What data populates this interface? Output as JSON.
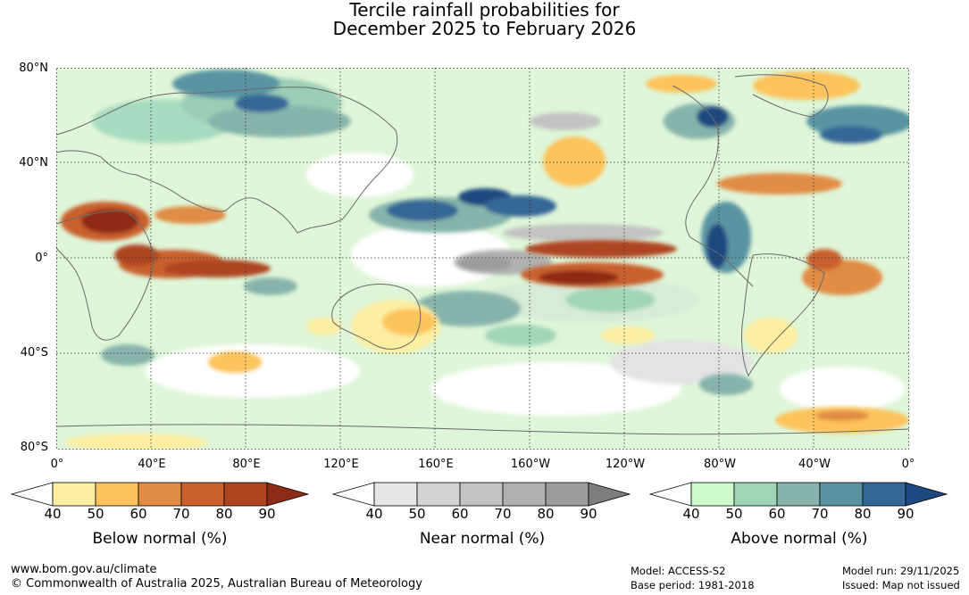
{
  "title": {
    "line1": "Tercile rainfall probabilities for",
    "line2": "December 2025 to February 2026"
  },
  "map": {
    "lat_labels": [
      "80°N",
      "40°N",
      "0°",
      "40°S",
      "80°S"
    ],
    "lon_labels": [
      "0°",
      "40°E",
      "80°E",
      "120°E",
      "160°E",
      "160°W",
      "120°W",
      "80°W",
      "40°W",
      "0°"
    ],
    "gridlines": true
  },
  "colorbars": [
    {
      "name": "below",
      "label": "Below normal (%)",
      "ticks": [
        "40",
        "50",
        "60",
        "70",
        "80",
        "90"
      ],
      "colors": [
        "#ffffff",
        "#fdeea2",
        "#fdc35c",
        "#e08c44",
        "#c9612e",
        "#ae4422",
        "#8c2c17"
      ]
    },
    {
      "name": "near",
      "label": "Near normal (%)",
      "ticks": [
        "40",
        "50",
        "60",
        "70",
        "80",
        "90"
      ],
      "colors": [
        "#ffffff",
        "#e6e6e6",
        "#d3d3d3",
        "#c3c3c3",
        "#b0b0b0",
        "#9c9c9c",
        "#7d7d7d"
      ]
    },
    {
      "name": "above",
      "label": "Above normal (%)",
      "ticks": [
        "40",
        "50",
        "60",
        "70",
        "80",
        "90"
      ],
      "colors": [
        "#ffffff",
        "#ccfccc",
        "#a1d5b8",
        "#86b4ac",
        "#5a94a3",
        "#356796",
        "#1c4980"
      ]
    }
  ],
  "footer": {
    "url": "www.bom.gov.au/climate",
    "copyright": "© Commonwealth of Australia 2025, Australian Bureau of Meteorology",
    "model": "Model: ACCESS-S2",
    "base_period": "Base period: 1981-2018",
    "model_run": "Model run: 29/11/2025",
    "issued": "Issued: Map not issued"
  }
}
